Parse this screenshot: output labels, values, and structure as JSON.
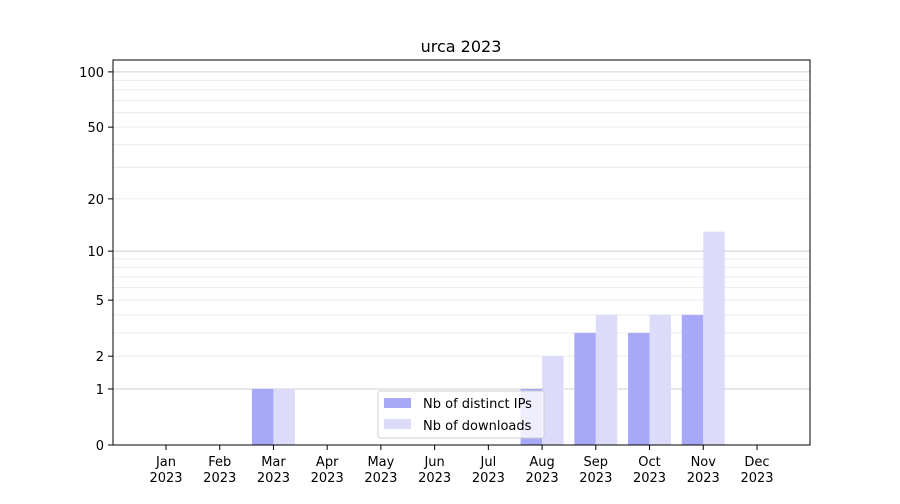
{
  "chart_data": {
    "type": "bar",
    "title": "urca 2023",
    "xlabel": "",
    "ylabel": "",
    "yscale": "log1p (symmetric log)",
    "ylim": [
      0,
      116
    ],
    "yticks": [
      0,
      1,
      2,
      5,
      10,
      20,
      50,
      100
    ],
    "ytick_labels": [
      "0",
      "1",
      "2",
      "5",
      "10",
      "20",
      "50",
      "100"
    ],
    "grid": "horizontal, major at 1/10/100, minor light",
    "legend_placement": "lower-center",
    "categories": [
      {
        "month": "Jan",
        "year": "2023"
      },
      {
        "month": "Feb",
        "year": "2023"
      },
      {
        "month": "Mar",
        "year": "2023"
      },
      {
        "month": "Apr",
        "year": "2023"
      },
      {
        "month": "May",
        "year": "2023"
      },
      {
        "month": "Jun",
        "year": "2023"
      },
      {
        "month": "Jul",
        "year": "2023"
      },
      {
        "month": "Aug",
        "year": "2023"
      },
      {
        "month": "Sep",
        "year": "2023"
      },
      {
        "month": "Oct",
        "year": "2023"
      },
      {
        "month": "Nov",
        "year": "2023"
      },
      {
        "month": "Dec",
        "year": "2023"
      }
    ],
    "series": [
      {
        "name": "Nb of distinct IPs",
        "color": "#a8a8f8",
        "values": [
          0,
          0,
          1,
          0,
          0,
          0,
          0,
          1,
          3,
          3,
          4,
          0
        ]
      },
      {
        "name": "Nb of downloads",
        "color": "#dcdcfa",
        "values": [
          0,
          0,
          1,
          0,
          0,
          0,
          0,
          2,
          4,
          4,
          13,
          0
        ]
      }
    ]
  }
}
